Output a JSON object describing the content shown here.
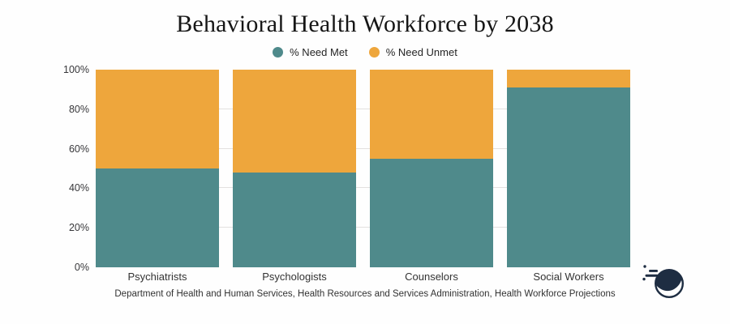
{
  "title": "Behavioral Health Workforce by 2038",
  "legend": [
    {
      "label": "% Need Met",
      "color": "#4f8a8b"
    },
    {
      "label": "% Need Unmet",
      "color": "#eea63c"
    }
  ],
  "chart_data": {
    "type": "bar",
    "stacked": true,
    "title": "Behavioral Health Workforce by 2038",
    "categories": [
      "Psychiatrists",
      "Psychologists",
      "Counselors",
      "Social Workers"
    ],
    "series": [
      {
        "name": "% Need Met",
        "color": "#4f8a8b",
        "values": [
          50,
          48,
          55,
          91
        ]
      },
      {
        "name": "% Need Unmet",
        "color": "#eea63c",
        "values": [
          50,
          52,
          45,
          9
        ]
      }
    ],
    "xlabel": "",
    "ylabel": "",
    "ylim": [
      0,
      100
    ],
    "y_ticks": [
      {
        "value": 0,
        "label": "0%"
      },
      {
        "value": 20,
        "label": "20%"
      },
      {
        "value": 40,
        "label": "40%"
      },
      {
        "value": 60,
        "label": "60%"
      },
      {
        "value": 80,
        "label": "80%"
      },
      {
        "value": 100,
        "label": "100%"
      }
    ],
    "gridline_values": [
      20,
      40,
      60,
      80
    ],
    "grid": true,
    "legend_position": "top",
    "gridline_color": "#e3e1df"
  },
  "source": "Department of Health and Human Services, Health Resources and Services Administration, Health Workforce Projections",
  "logo": {
    "name": "comet-swoosh-logo",
    "color": "#1e2d42"
  }
}
